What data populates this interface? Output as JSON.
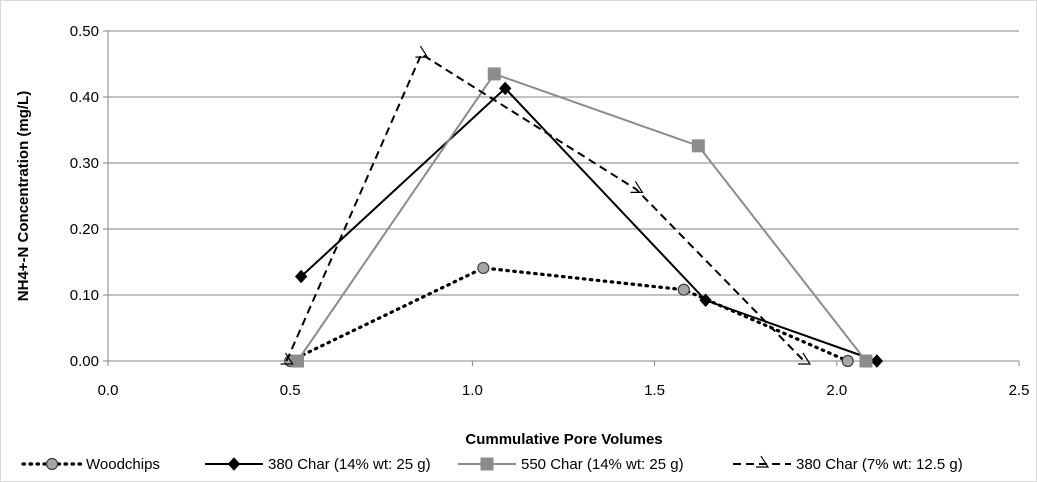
{
  "chart_data": {
    "type": "scatter",
    "title": "",
    "xlabel": "Cummulative Pore Volumes",
    "ylabel": "NH4+-N  Concentration (mg/L)",
    "xlim": [
      0.0,
      2.5
    ],
    "ylim": [
      0.0,
      0.5
    ],
    "x_ticks": [
      "0.0",
      "0.5",
      "1.0",
      "1.5",
      "2.0",
      "2.5"
    ],
    "y_ticks": [
      "0.00",
      "0.10",
      "0.20",
      "0.30",
      "0.40",
      "0.50"
    ],
    "grid": "horizontal",
    "legend_position": "bottom",
    "series": [
      {
        "name": "Woodchips",
        "color": "#000000",
        "line_style": "dotted",
        "marker": "circle",
        "marker_fill": "#a6a6a6",
        "x": [
          0.5,
          1.03,
          1.58,
          2.03
        ],
        "y": [
          0.0,
          0.141,
          0.108,
          0.0
        ]
      },
      {
        "name": "380 Char (14% wt: 25 g)",
        "color": "#000000",
        "line_style": "solid",
        "marker": "diamond",
        "marker_fill": "#000000",
        "x": [
          0.53,
          1.09,
          1.64,
          2.11
        ],
        "y": [
          0.128,
          0.413,
          0.092,
          0.0
        ]
      },
      {
        "name": "550 Char (14% wt: 25 g)",
        "color": "#8c8c8c",
        "line_style": "solid",
        "marker": "square",
        "marker_fill": "#8c8c8c",
        "x": [
          0.52,
          1.06,
          1.62,
          2.08
        ],
        "y": [
          0.0,
          0.435,
          0.326,
          0.0
        ]
      },
      {
        "name": "380 Char (7% wt: 12.5 g)",
        "color": "#000000",
        "line_style": "dashed",
        "marker": "triangle-open",
        "marker_fill": "#ffffff",
        "x": [
          0.49,
          0.86,
          1.45,
          1.91
        ],
        "y": [
          0.0,
          0.465,
          0.26,
          0.0
        ]
      }
    ]
  }
}
